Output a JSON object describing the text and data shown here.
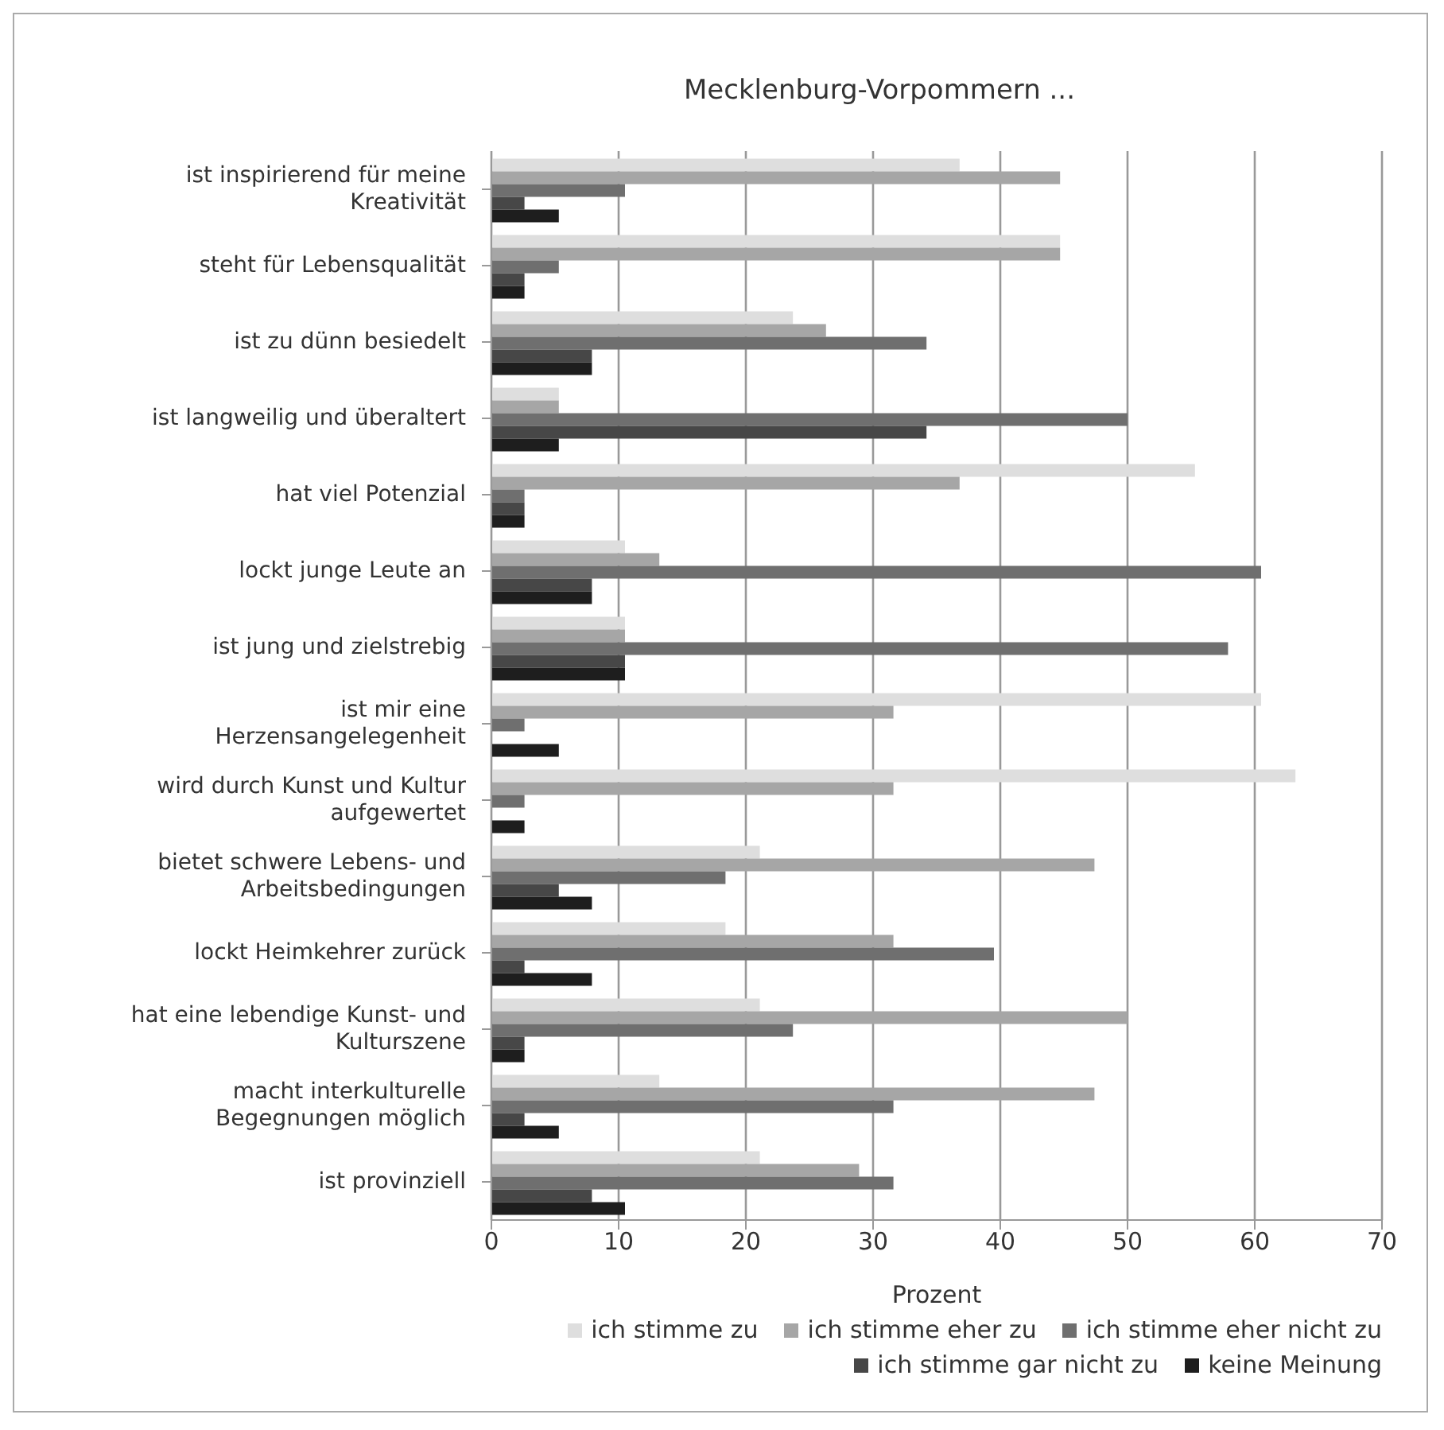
{
  "chart_data": {
    "type": "bar",
    "orientation": "horizontal",
    "title": "Mecklenburg-Vorpommern ...",
    "xlabel": "Prozent",
    "categories": [
      "ist inspirierend für meine Kreativität",
      "steht für Lebensqualität",
      "ist zu dünn besiedelt",
      "ist langweilig und überaltert",
      "hat viel Potenzial",
      "lockt junge Leute an",
      "ist jung und zielstrebig",
      "ist mir eine Herzensangelegenheit",
      "wird durch Kunst und Kultur aufgewertet",
      "bietet schwere Lebens- und Arbeitsbedingungen",
      "lockt Heimkehrer zurück",
      "hat eine lebendige Kunst- und Kulturszene",
      "macht interkulturelle Begegnungen möglich",
      "ist provinziell"
    ],
    "series": [
      {
        "name": "ich stimme zu",
        "color": "#dedede",
        "values": [
          36.8,
          44.7,
          23.7,
          5.3,
          55.3,
          10.5,
          10.5,
          60.5,
          63.2,
          21.1,
          18.4,
          21.1,
          13.2,
          21.1
        ]
      },
      {
        "name": "ich stimme eher zu",
        "color": "#a6a6a6",
        "values": [
          44.7,
          44.7,
          26.3,
          5.3,
          36.8,
          13.2,
          10.5,
          31.6,
          31.6,
          47.4,
          31.6,
          50,
          47.4,
          28.9
        ]
      },
      {
        "name": "ich stimme eher nicht zu",
        "color": "#6f6f6f",
        "values": [
          10.5,
          5.3,
          34.2,
          50,
          2.6,
          60.5,
          57.9,
          2.6,
          2.6,
          18.4,
          39.5,
          23.7,
          31.6,
          31.6
        ]
      },
      {
        "name": "ich stimme gar nicht zu",
        "color": "#474747",
        "values": [
          2.6,
          2.6,
          7.9,
          34.2,
          2.6,
          7.9,
          10.5,
          0,
          0,
          5.3,
          2.6,
          2.6,
          2.6,
          7.9
        ]
      },
      {
        "name": "keine Meinung",
        "color": "#1e1e1e",
        "values": [
          5.3,
          2.6,
          7.9,
          5.3,
          2.6,
          7.9,
          10.5,
          5.3,
          2.6,
          7.9,
          7.9,
          2.6,
          5.3,
          10.5
        ]
      }
    ],
    "xlim": [
      0,
      70
    ],
    "xticks": [
      0,
      10,
      20,
      30,
      40,
      50,
      60,
      70
    ],
    "grid": "x",
    "legend": "bottom"
  }
}
